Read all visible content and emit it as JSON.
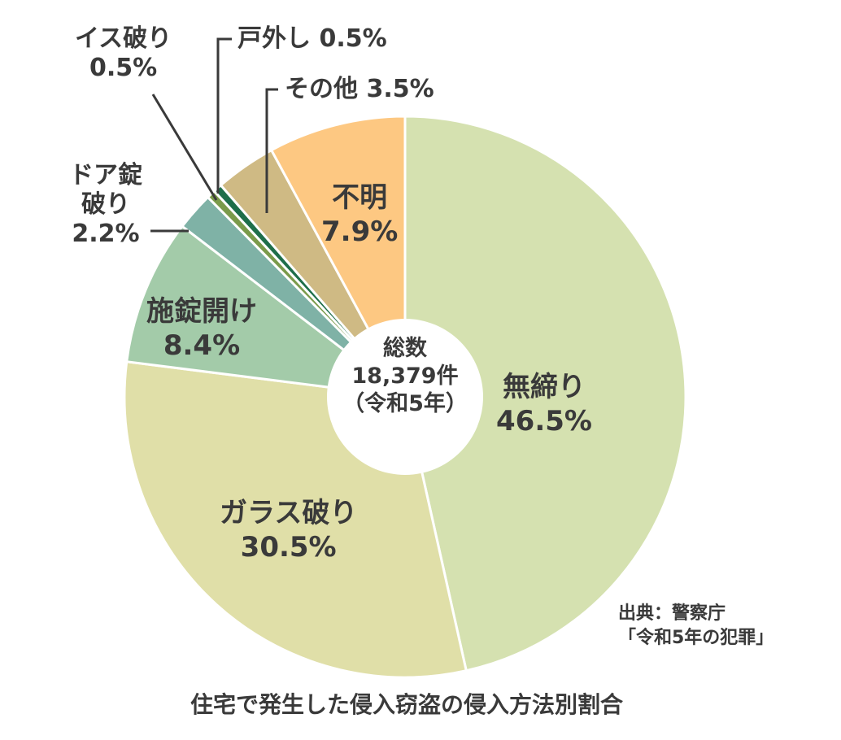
{
  "chart_data": {
    "type": "pie",
    "title": "住宅で発生した侵入窃盗の侵入方法別割合",
    "center_label": [
      "総数",
      "18,379件",
      "（令和5年）"
    ],
    "source": [
      "出典：警察庁",
      "「令和5年の犯罪」"
    ],
    "slices": [
      {
        "name": "無締り",
        "value": 46.5,
        "label": "46.5%",
        "color": "#d5e1b0"
      },
      {
        "name": "ガラス破り",
        "value": 30.5,
        "label": "30.5%",
        "color": "#e0dfa8"
      },
      {
        "name": "施錠開け",
        "value": 8.4,
        "label": "8.4%",
        "color": "#a3cba9"
      },
      {
        "name": "ドア錠破り",
        "value": 2.2,
        "label": "2.2%",
        "color": "#7fb2a6"
      },
      {
        "name": "イス破り",
        "value": 0.5,
        "label": "0.5%",
        "color": "#7a9a4a"
      },
      {
        "name": "戸外し",
        "value": 0.5,
        "label": "0.5%",
        "color": "#1e6e4a"
      },
      {
        "name": "その他",
        "value": 3.5,
        "label": "3.5%",
        "color": "#cfba84"
      },
      {
        "name": "不明",
        "value": 7.9,
        "label": "7.9%",
        "color": "#fdc882"
      }
    ],
    "label_text": {
      "door": [
        "ドア錠",
        "破り",
        "2.2%"
      ],
      "isu": [
        "イス破り",
        "0.5%"
      ],
      "toshi": "戸外し 0.5%",
      "other": "その他 3.5%"
    }
  }
}
